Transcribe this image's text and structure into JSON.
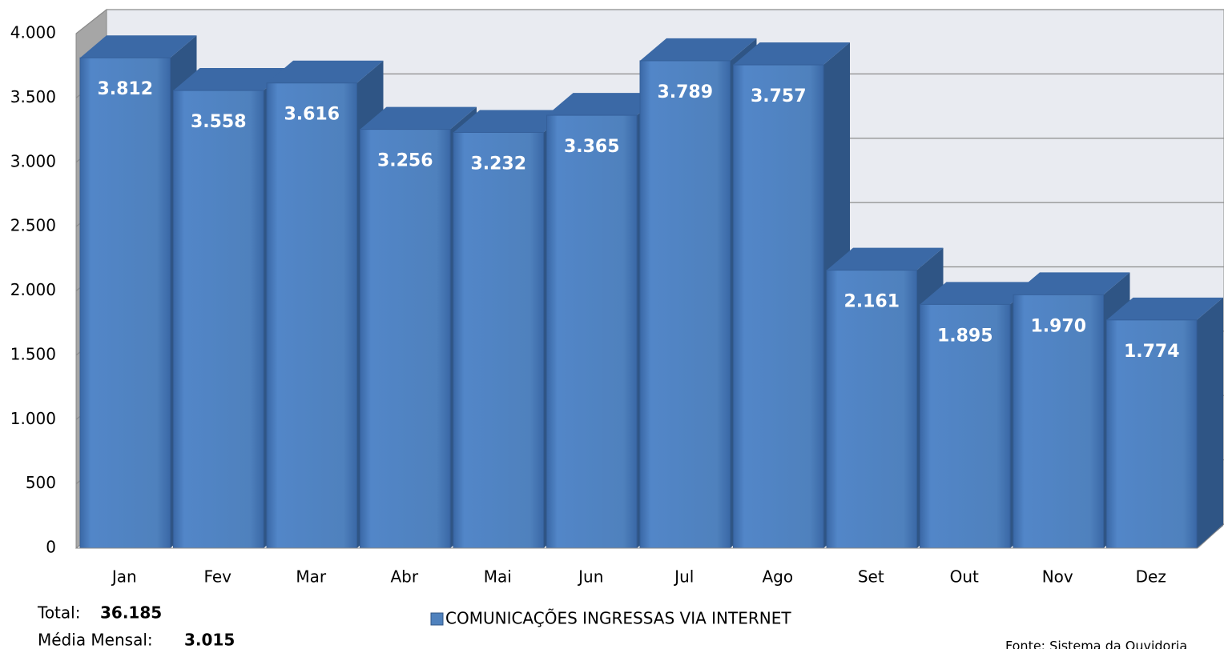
{
  "chart_data": {
    "type": "bar",
    "categories": [
      "Jan",
      "Fev",
      "Mar",
      "Abr",
      "Mai",
      "Jun",
      "Jul",
      "Ago",
      "Set",
      "Out",
      "Nov",
      "Dez"
    ],
    "series": [
      {
        "name": "COMUNICAÇÕES INGRESSAS VIA INTERNET",
        "color": "#4f81bd",
        "values": [
          3812,
          3558,
          3616,
          3256,
          3232,
          3365,
          3789,
          3757,
          2161,
          1895,
          1970,
          1774
        ],
        "value_labels": [
          "3.812",
          "3.558",
          "3.616",
          "3.256",
          "3.232",
          "3.365",
          "3.789",
          "3.757",
          "2.161",
          "1.895",
          "1.970",
          "1.774"
        ]
      }
    ],
    "ylim": [
      0,
      4000
    ],
    "yticks": [
      0,
      500,
      {
        "value": 1000,
        "label": "1.000"
      },
      {
        "value": 1500,
        "label": "1.500"
      },
      {
        "value": 2000,
        "label": "2.000"
      },
      {
        "value": 2500,
        "label": "2.500"
      },
      {
        "value": 3000,
        "label": "3.000"
      },
      {
        "value": 3500,
        "label": "3.500"
      },
      {
        "value": 4000,
        "label": "4.000"
      }
    ],
    "grid": true,
    "legend": "bottom",
    "annotations": {
      "total_label": "Total:",
      "total_value": "36.185",
      "mean_label": "Média Mensal:",
      "mean_value": "3.015",
      "source": "Fonte: Sistema da Ouvidoria"
    }
  }
}
